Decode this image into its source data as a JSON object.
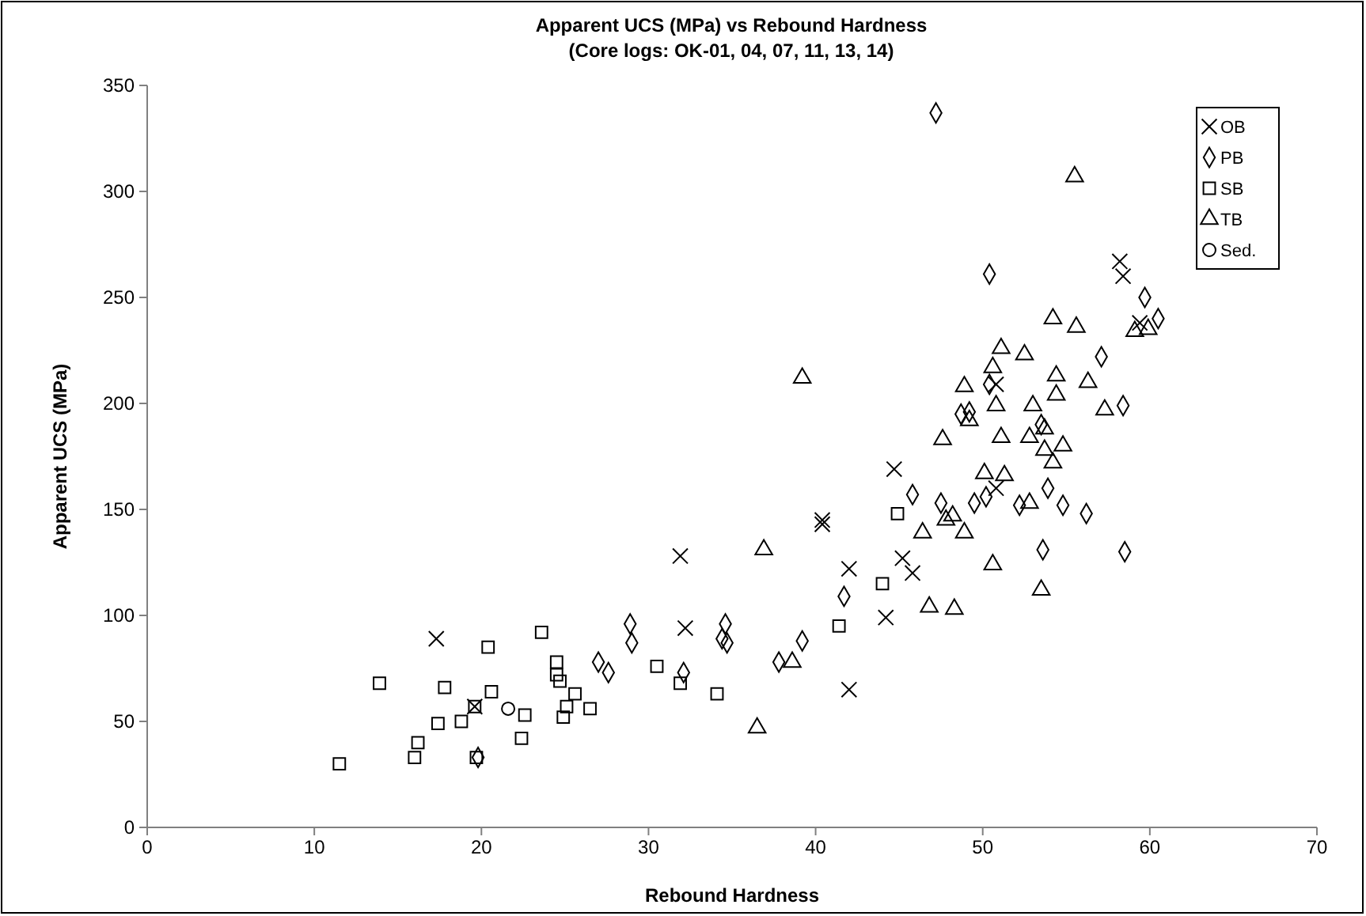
{
  "chart_data": {
    "type": "scatter",
    "title": "Apparent UCS (MPa) vs Rebound Hardness",
    "subtitle": "(Core logs: OK-01, 04, 07, 11, 13, 14)",
    "xlabel": "Rebound Hardness",
    "ylabel": "Apparent UCS (MPa)",
    "xlim": [
      0,
      70
    ],
    "xticks": [
      0,
      10,
      20,
      30,
      40,
      50,
      60,
      70
    ],
    "ylim": [
      0,
      350
    ],
    "yticks": [
      0,
      50,
      100,
      150,
      200,
      250,
      300,
      350
    ],
    "grid": false,
    "legend": "top right",
    "series": [
      {
        "name": "OB",
        "color": "#000000",
        "marker": "cross",
        "x": [
          17.3,
          19.6,
          31.9,
          32.2,
          40.4,
          40.4,
          42.0,
          42.0,
          44.2,
          44.7,
          45.2,
          45.8,
          50.8,
          50.8,
          58.2,
          58.4,
          59.4
        ],
        "values": [
          89,
          57,
          128,
          94,
          145,
          143,
          122,
          65,
          99,
          169,
          127,
          120,
          160,
          209,
          267,
          260,
          238
        ]
      },
      {
        "name": "PB",
        "color": "#000000",
        "marker": "diamond",
        "x": [
          19.8,
          27.0,
          27.6,
          28.9,
          29.0,
          32.1,
          34.6,
          34.4,
          34.7,
          37.8,
          39.2,
          41.7,
          45.8,
          47.5,
          49.5,
          50.2,
          50.4,
          50.4,
          48.7,
          49.2,
          47.2,
          59.7,
          60.5,
          57.1,
          58.4,
          53.5,
          53.9,
          52.2,
          54.8,
          56.2,
          53.6,
          58.5
        ],
        "values": [
          33,
          78,
          73,
          96,
          87,
          73,
          96,
          89,
          87,
          78,
          88,
          109,
          157,
          153,
          153,
          156,
          261,
          209,
          195,
          196,
          337,
          250,
          240,
          222,
          199,
          190,
          160,
          152,
          152,
          148,
          131,
          130
        ]
      },
      {
        "name": "SB",
        "color": "#000000",
        "marker": "square",
        "x": [
          11.5,
          13.9,
          16.0,
          16.2,
          17.4,
          17.8,
          18.8,
          19.6,
          19.7,
          20.4,
          20.6,
          22.6,
          22.4,
          23.6,
          24.5,
          24.5,
          24.7,
          25.6,
          25.1,
          24.9,
          26.5,
          30.5,
          31.9,
          34.1,
          41.4,
          44.0,
          44.9
        ],
        "values": [
          30,
          68,
          33,
          40,
          49,
          66,
          50,
          57,
          33,
          85,
          64,
          53,
          42,
          92,
          78,
          72,
          69,
          63,
          57,
          52,
          56,
          76,
          68,
          63,
          95,
          115,
          148
        ]
      },
      {
        "name": "TB",
        "color": "#000000",
        "marker": "triangle",
        "x": [
          36.9,
          36.5,
          38.6,
          46.4,
          46.8,
          39.2,
          47.8,
          48.2,
          48.9,
          50.1,
          50.6,
          48.3,
          51.1,
          50.6,
          48.9,
          50.8,
          49.2,
          47.6,
          51.1,
          55.5,
          59.1,
          59.9,
          54.2,
          55.6,
          52.5,
          54.4,
          56.3,
          54.4,
          53.0,
          57.3,
          53.7,
          52.8,
          53.7,
          54.8,
          54.2,
          51.3,
          52.8,
          53.5
        ],
        "values": [
          131,
          47,
          78,
          139,
          104,
          212,
          145,
          147,
          139,
          167,
          124,
          103,
          226,
          217,
          208,
          199,
          192,
          183,
          184,
          307,
          234,
          235,
          240,
          236,
          223,
          213,
          210,
          204,
          199,
          197,
          188,
          184,
          178,
          180,
          172,
          166,
          153,
          112
        ]
      },
      {
        "name": "Sed.",
        "color": "#000000",
        "marker": "circle",
        "x": [
          21.6
        ],
        "values": [
          56
        ]
      }
    ]
  }
}
